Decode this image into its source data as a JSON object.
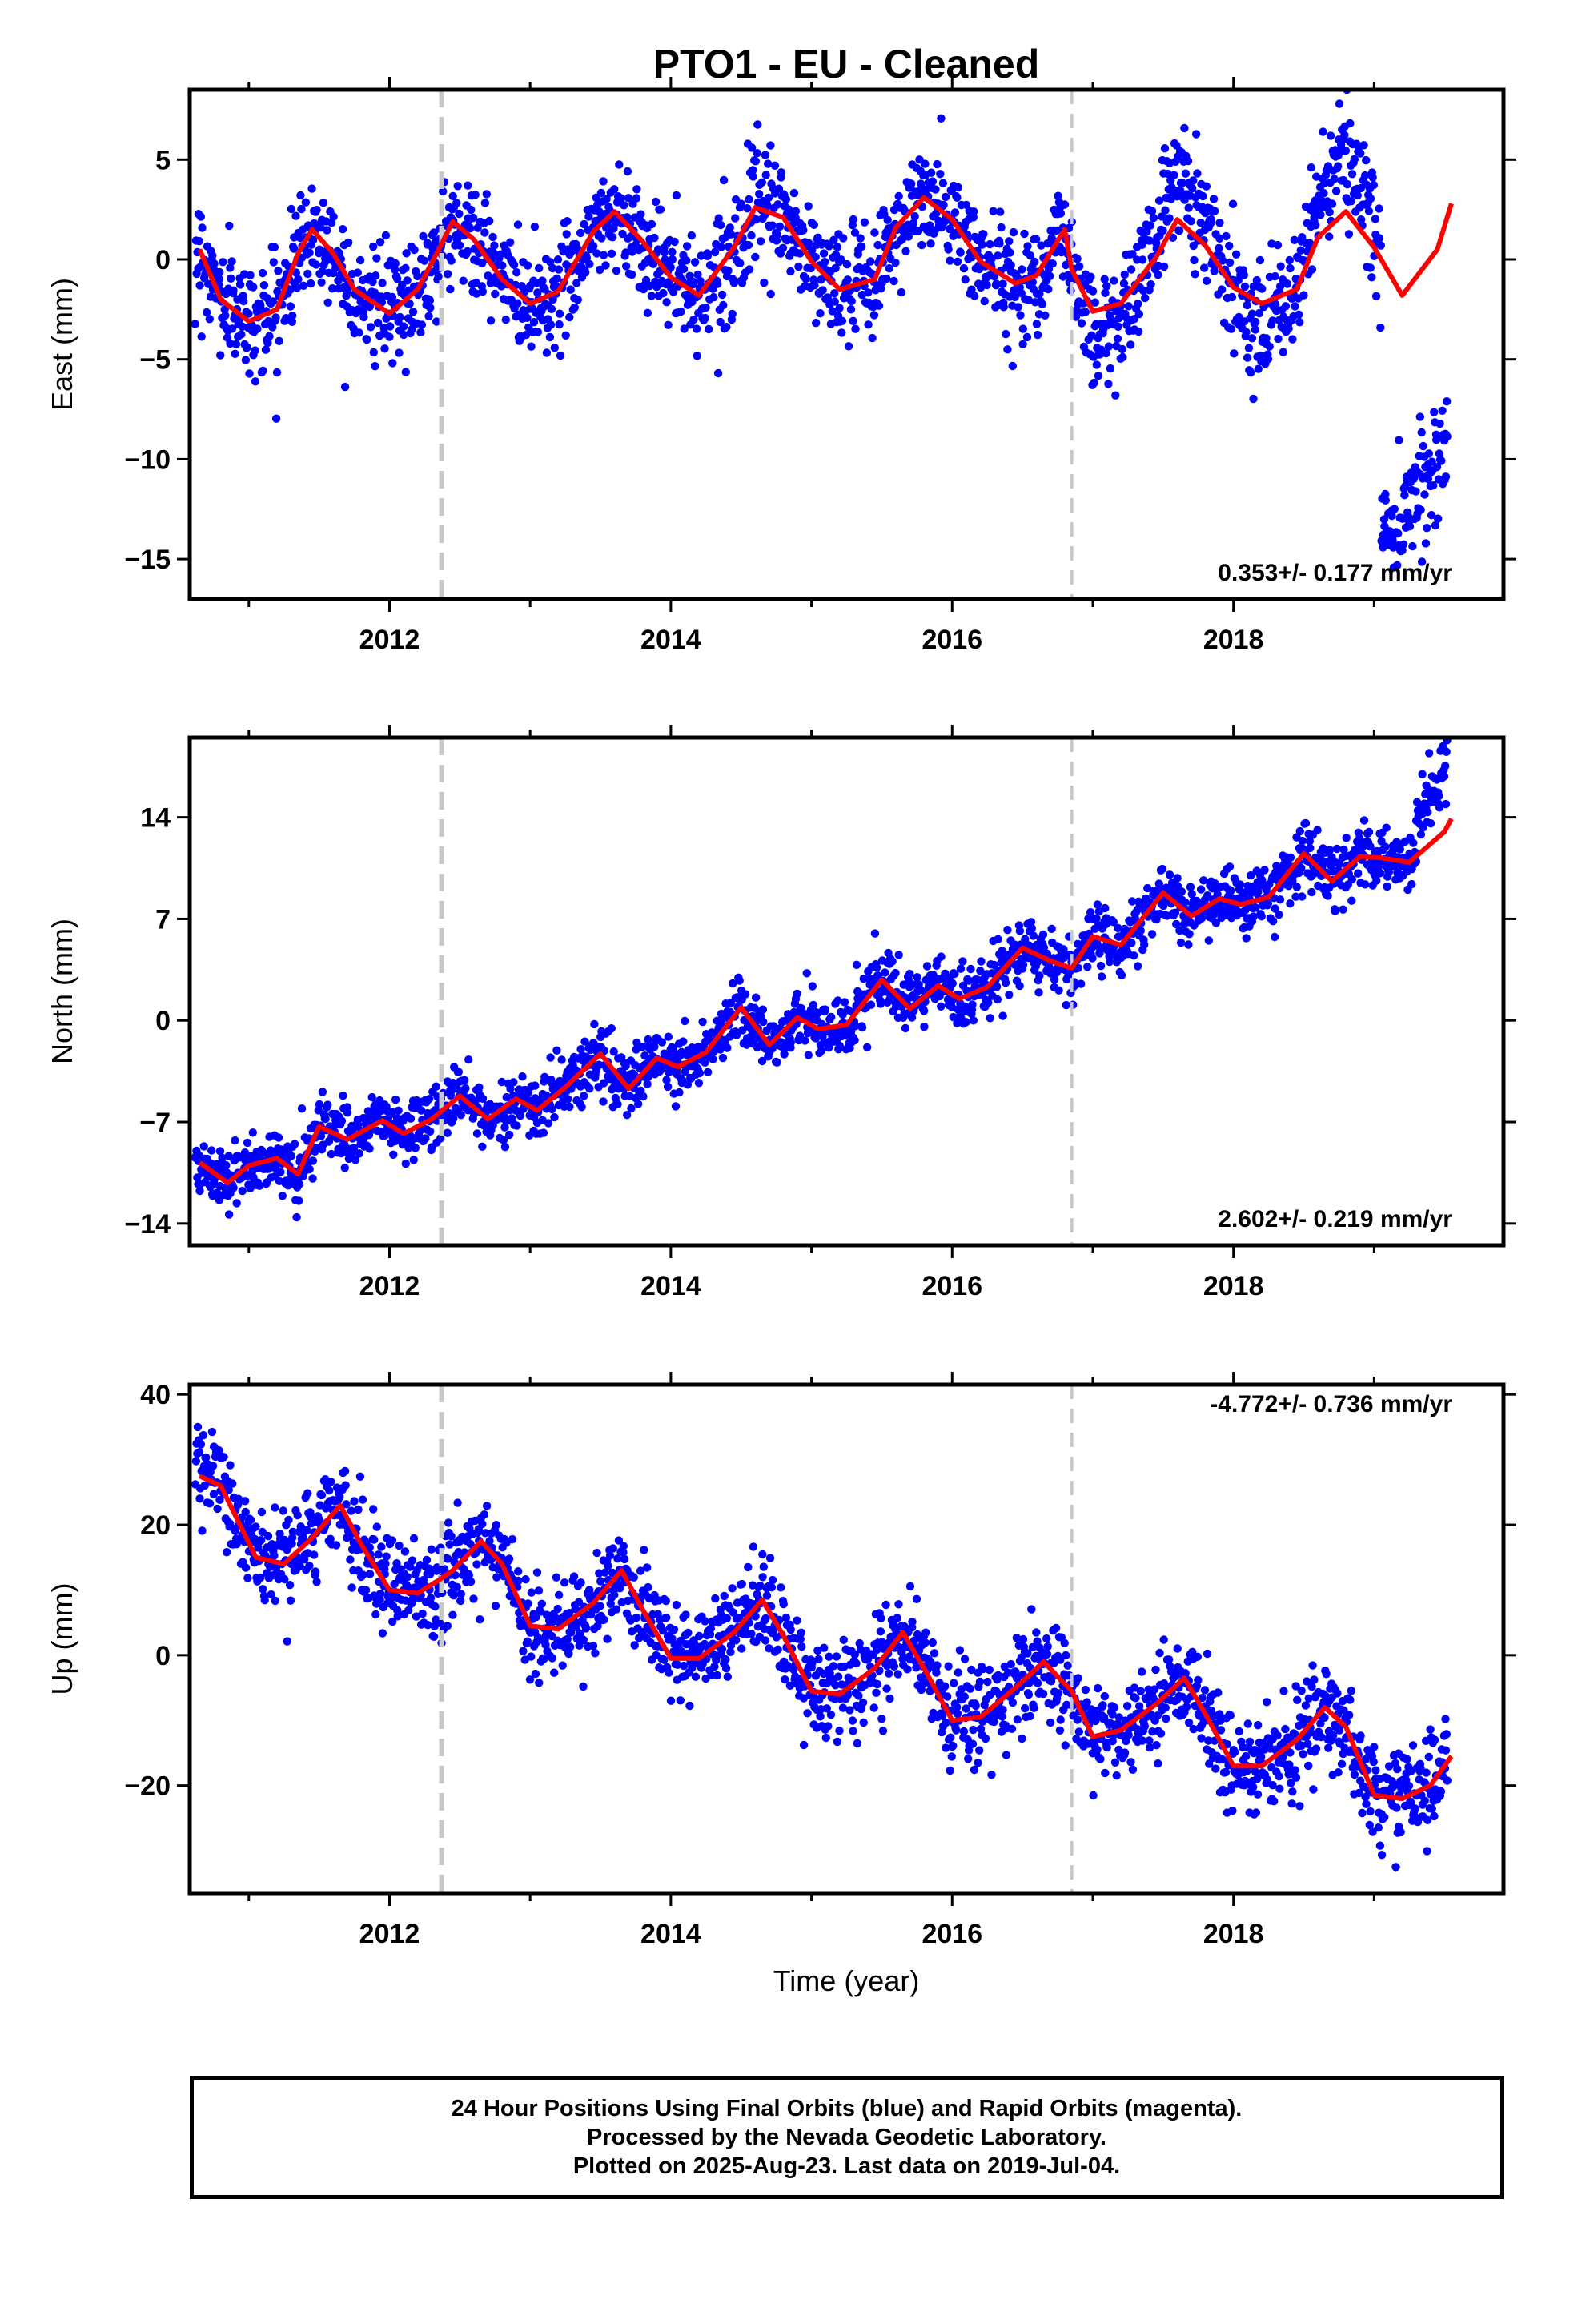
{
  "title": "PTO1  - EU - Cleaned",
  "xlabel": "Time (year)",
  "colors": {
    "data": "#0000ff",
    "model": "#ff0000",
    "step": "#c8c8c8",
    "axis": "#000000"
  },
  "chart_data": [
    {
      "type": "scatter",
      "component": "east",
      "ylabel": "East (mm)",
      "rate_text": "0.353+/- 0.177 mm/yr",
      "xlim": [
        2010.58,
        2019.92
      ],
      "ylim": [
        -17.0,
        8.5
      ],
      "yticks": [
        5,
        0,
        -5,
        -10,
        -15
      ],
      "ytick_labels": [
        "5",
        "0",
        "−5",
        "−10",
        "−15"
      ],
      "xticks": [
        2012,
        2014,
        2016,
        2018
      ],
      "xtick_labels": [
        "2012",
        "2014",
        "2016",
        "2018"
      ],
      "steps": [
        {
          "x": 2012.37,
          "style": "heavy"
        },
        {
          "x": 2016.85,
          "style": "light"
        }
      ],
      "model": {
        "x": [
          2010.65,
          2010.8,
          2011.0,
          2011.2,
          2011.35,
          2011.45,
          2011.6,
          2011.75,
          2012.0,
          2012.2,
          2012.35,
          2012.45,
          2012.6,
          2012.8,
          2013.0,
          2013.2,
          2013.45,
          2013.6,
          2013.8,
          2014.0,
          2014.2,
          2014.45,
          2014.6,
          2014.8,
          2015.0,
          2015.2,
          2015.45,
          2015.6,
          2015.8,
          2016.0,
          2016.2,
          2016.45,
          2016.6,
          2016.8,
          2016.85,
          2017.0,
          2017.2,
          2017.45,
          2017.6,
          2017.8,
          2018.0,
          2018.2,
          2018.45,
          2018.6,
          2018.8,
          2019.0,
          2019.2,
          2019.45,
          2019.55
        ],
        "y": [
          0.5,
          -2.0,
          -3.1,
          -2.5,
          0.3,
          1.5,
          0.3,
          -1.5,
          -2.7,
          -1.5,
          0.5,
          1.9,
          1.0,
          -1.0,
          -2.2,
          -1.6,
          1.4,
          2.4,
          0.9,
          -0.9,
          -1.8,
          0.6,
          2.6,
          2.1,
          -0.1,
          -1.5,
          -1.0,
          1.6,
          3.1,
          2.0,
          -0.1,
          -1.2,
          -0.8,
          1.5,
          -0.5,
          -2.6,
          -2.2,
          0.1,
          2.0,
          0.7,
          -1.4,
          -2.2,
          -1.5,
          1.1,
          2.4,
          0.6,
          -1.8,
          0.5,
          2.8
        ]
      },
      "series_rule": {
        "std": 1.35,
        "outlier": {
          "from": 2019.05,
          "to": 2019.55,
          "from_y": -14.0,
          "to_y": -9.0,
          "std": 1.4
        }
      }
    },
    {
      "type": "scatter",
      "component": "north",
      "ylabel": "North (mm)",
      "rate_text": "2.602+/- 0.219 mm/yr",
      "xlim": [
        2010.58,
        2019.92
      ],
      "ylim": [
        -15.5,
        19.5
      ],
      "yticks": [
        14,
        7,
        0,
        -7,
        -14
      ],
      "ytick_labels": [
        "14",
        "7",
        "0",
        "−7",
        "−14"
      ],
      "xticks": [
        2012,
        2014,
        2016,
        2018
      ],
      "xtick_labels": [
        "2012",
        "2014",
        "2016",
        "2018"
      ],
      "steps": [
        {
          "x": 2012.37,
          "style": "heavy"
        },
        {
          "x": 2016.85,
          "style": "light"
        }
      ],
      "model": {
        "x": [
          2010.65,
          2010.85,
          2011.0,
          2011.2,
          2011.35,
          2011.5,
          2011.7,
          2011.95,
          2012.1,
          2012.3,
          2012.5,
          2012.7,
          2012.9,
          2013.05,
          2013.25,
          2013.5,
          2013.7,
          2013.9,
          2014.05,
          2014.25,
          2014.5,
          2014.7,
          2014.9,
          2015.05,
          2015.25,
          2015.5,
          2015.7,
          2015.9,
          2016.05,
          2016.25,
          2016.5,
          2016.7,
          2016.85,
          2017.0,
          2017.2,
          2017.5,
          2017.7,
          2017.9,
          2018.05,
          2018.25,
          2018.5,
          2018.7,
          2018.9,
          2019.05,
          2019.25,
          2019.5,
          2019.55
        ],
        "y": [
          -9.8,
          -11.2,
          -10.0,
          -9.5,
          -10.6,
          -7.3,
          -8.2,
          -6.9,
          -7.8,
          -6.8,
          -5.2,
          -6.8,
          -5.4,
          -6.2,
          -4.6,
          -2.3,
          -4.7,
          -2.6,
          -3.2,
          -2.2,
          0.9,
          -1.7,
          0.2,
          -0.6,
          -0.3,
          2.8,
          0.8,
          2.4,
          1.5,
          2.3,
          5.0,
          4.1,
          3.6,
          5.8,
          5.2,
          8.8,
          7.2,
          8.4,
          8.0,
          8.5,
          11.5,
          9.6,
          11.3,
          11.2,
          10.9,
          13.0,
          13.9
        ]
      },
      "series_rule": {
        "std": 1.05,
        "outlier": {
          "from": 2019.3,
          "to": 2019.55,
          "from_y": 14.0,
          "to_y": 18.0,
          "std": 1.2
        }
      }
    },
    {
      "type": "scatter",
      "component": "up",
      "ylabel": "Up (mm)",
      "rate_text": "-4.772+/- 0.736 mm/yr",
      "xlim": [
        2010.58,
        2019.92
      ],
      "ylim": [
        -36.5,
        41.5
      ],
      "yticks": [
        40,
        20,
        0,
        -20
      ],
      "ytick_labels": [
        "40",
        "20",
        "0",
        "−20"
      ],
      "xticks": [
        2012,
        2014,
        2016,
        2018
      ],
      "xtick_labels": [
        "2012",
        "2014",
        "2016",
        "2018"
      ],
      "steps": [
        {
          "x": 2012.37,
          "style": "heavy"
        },
        {
          "x": 2016.85,
          "style": "light"
        }
      ],
      "model": {
        "x": [
          2010.65,
          2010.8,
          2011.05,
          2011.25,
          2011.45,
          2011.65,
          2011.8,
          2012.0,
          2012.2,
          2012.35,
          2012.45,
          2012.65,
          2012.8,
          2013.0,
          2013.2,
          2013.45,
          2013.65,
          2013.8,
          2014.0,
          2014.2,
          2014.45,
          2014.65,
          2014.8,
          2015.0,
          2015.2,
          2015.45,
          2015.65,
          2015.8,
          2016.0,
          2016.2,
          2016.45,
          2016.65,
          2016.85,
          2017.0,
          2017.2,
          2017.45,
          2017.65,
          2017.8,
          2018.0,
          2018.2,
          2018.45,
          2018.65,
          2018.8,
          2019.0,
          2019.2,
          2019.4,
          2019.55
        ],
        "y": [
          27.5,
          26.0,
          15.0,
          14.0,
          18.0,
          23.0,
          17.0,
          10.0,
          9.5,
          11.5,
          13.0,
          17.5,
          14.0,
          4.5,
          4.0,
          8.0,
          13.0,
          7.0,
          -0.5,
          -0.5,
          3.5,
          8.5,
          3.0,
          -5.5,
          -6.0,
          -2.0,
          3.5,
          -2.0,
          -10.0,
          -9.5,
          -5.0,
          -1.0,
          -5.5,
          -12.5,
          -11.5,
          -7.5,
          -3.5,
          -9.0,
          -17.0,
          -17.0,
          -13.0,
          -8.0,
          -11.0,
          -21.5,
          -22.0,
          -20.0,
          -15.5
        ]
      },
      "series_rule": {
        "std": 3.6
      }
    }
  ],
  "footer": {
    "line1": "24 Hour Positions Using Final Orbits (blue) and Rapid Orbits (magenta).",
    "line2": "Processed by the Nevada Geodetic Laboratory.",
    "line3": "Plotted on 2025-Aug-23. Last data on 2019-Jul-04."
  }
}
